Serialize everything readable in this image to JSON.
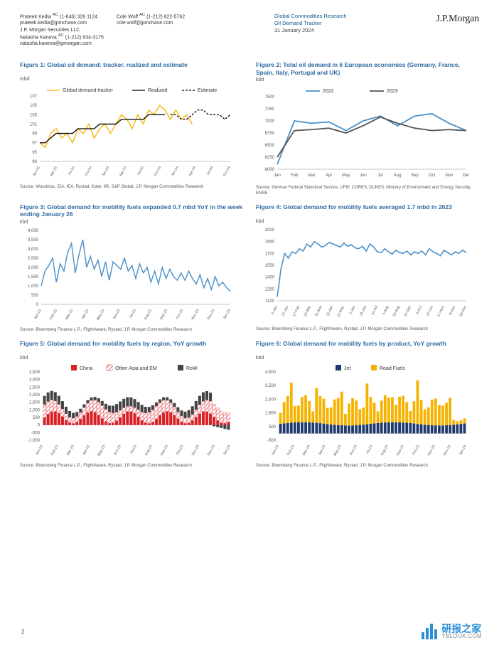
{
  "header": {
    "authors": [
      {
        "name": "Prateek Kedia",
        "sup": "AC",
        "phone": "(1-646) 326 1124",
        "email": "prateek.kedia@jpmchase.com"
      },
      {
        "name": "Natasha Kaneva",
        "sup": "AC",
        "phone": "(1-212) 834-3175",
        "email": "natasha.kaneva@jpmorgan.com"
      },
      {
        "name": "Cole Wolf",
        "sup": "AC",
        "phone": "(1-212) 622-5762",
        "email": "cole.wolf@jpmchase.com"
      }
    ],
    "firm": "J.P. Morgan Securities LLC",
    "dept": "Global Commodities Research",
    "sub": "Oil Demand Tracker",
    "date": "31 January 2024",
    "logo": "J.P.Morgan"
  },
  "page": "2",
  "watermark": {
    "cn": "研报之家",
    "en": "YBLOOK.COM"
  },
  "figures": {
    "f1": {
      "title": "Figure 1: Global oil demand: tracker, realized and estimate",
      "unit": "mbd",
      "type": "line",
      "legend": [
        "Global demand tracker",
        "Realized",
        "Estimate"
      ],
      "colors": [
        "#f5b300",
        "#000000",
        "#000000"
      ],
      "line_styles": [
        "solid",
        "solid",
        "dash"
      ],
      "line_width": 1.3,
      "ylim": [
        93,
        107
      ],
      "ytick_step": 2,
      "x_labels": [
        "Jan-22",
        "Apr-22",
        "Jul-22",
        "Oct-22",
        "Jan-23",
        "Apr-23",
        "Jul-23",
        "Oct-23",
        "Jan-24",
        "Apr-24",
        "Jul-24",
        "Oct-24"
      ],
      "background": "#ffffff",
      "grid_color": "#d0d0d0",
      "series": {
        "tracker": [
          97,
          96,
          99,
          100,
          98,
          99,
          97,
          100,
          99,
          101,
          98,
          100,
          101,
          99,
          101,
          103,
          102,
          100,
          103,
          101,
          104,
          103,
          105,
          104,
          102,
          104,
          102,
          103,
          101
        ],
        "realized": [
          97,
          97,
          98,
          99,
          99,
          99,
          99,
          100,
          100,
          100,
          100,
          101,
          101,
          101,
          101,
          102,
          102,
          102,
          102,
          102,
          103,
          103,
          103,
          103
        ],
        "estimate_x_offset": 24,
        "estimate": [
          103,
          103,
          102,
          102,
          103,
          104,
          104,
          103,
          103,
          103,
          102,
          103
        ]
      },
      "source": "Source: Woodmac, EIA, IEA, Rystad, Kpler, IIR, S&P Global, J.P. Morgan Commodities Research"
    },
    "f2": {
      "title": "Figure 2: Total oil demand in 6 European economies (Germany, France, Spain, Italy, Portugal and UK)",
      "unit": "kbd",
      "type": "line",
      "legend": [
        "2022",
        "2023"
      ],
      "colors": [
        "#4a8fc9",
        "#555555"
      ],
      "line_width": 1.8,
      "ylim": [
        6000,
        7500
      ],
      "ytick_step": 250,
      "x_labels": [
        "Jan",
        "Feb",
        "Mar",
        "Apr",
        "May",
        "Jun",
        "Jul",
        "Aug",
        "Sep",
        "Oct",
        "Nov",
        "Dec"
      ],
      "background": "#ffffff",
      "grid_color": "#d0d0d0",
      "series": {
        "y2022": [
          6100,
          7000,
          6950,
          6980,
          6800,
          7000,
          7100,
          6900,
          7100,
          7150,
          6950,
          6800
        ],
        "y2023": [
          6250,
          6800,
          6820,
          6850,
          6750,
          6900,
          7080,
          6950,
          6850,
          6800,
          6820,
          6800
        ]
      },
      "source": "Source: German Federal Statistical Service, UFIP, CORES, DUKES, Ministry of Environment and Energy Security, ENSE"
    },
    "f3": {
      "title": "Figure 3: Global demand for mobility fuels expanded 0.7 mbd YoY in the week ending January 26",
      "unit": "kbd",
      "type": "line",
      "colors": [
        "#4a8fc9"
      ],
      "line_width": 1.4,
      "ylim": [
        0,
        4000
      ],
      "ytick_step": 500,
      "x_labels": [
        "Jan-23",
        "Feb-23",
        "Mar-23",
        "Apr-23",
        "May-23",
        "Jun-23",
        "Jul-23",
        "Aug-23",
        "Sep-23",
        "Oct-23",
        "Nov-23",
        "Dec-23",
        "Jan-24"
      ],
      "background": "#ffffff",
      "grid_color": "#d0d0d0",
      "series": {
        "y": [
          1000,
          1800,
          2100,
          2500,
          1200,
          2200,
          1800,
          2800,
          3300,
          1700,
          2700,
          3500,
          2000,
          2600,
          1900,
          2400,
          1500,
          2300,
          1300,
          2300,
          2100,
          1900,
          2500,
          1800,
          2100,
          1400,
          2200,
          1700,
          2000,
          1200,
          1800,
          1100,
          2000,
          1400,
          1900,
          1500,
          1300,
          1700,
          1300,
          1800,
          1400,
          1100,
          1600,
          900,
          1400,
          800,
          1500,
          1000,
          1200,
          900,
          700
        ]
      },
      "source": "Source: Bloomberg Finance L.P., FlightAware, Rystad, J.P. Morgan Commodities Research"
    },
    "f4": {
      "title": "Figure 4: Global demand for mobility fuels averaged 1.7 mbd in 2023",
      "unit": "kbd",
      "type": "line",
      "colors": [
        "#4a8fc9"
      ],
      "line_width": 1.6,
      "ylim": [
        1100,
        2000
      ],
      "ytick_step": 150,
      "x_labels": [
        "6-Jan",
        "27-Jan",
        "17-Feb",
        "10-Mar",
        "31-Mar",
        "21-Apr",
        "12-May",
        "2-Jun",
        "23-Jun",
        "14-Jul",
        "4-Aug",
        "25-Aug",
        "15-Sep",
        "6-Oct",
        "27-Oct",
        "17-Nov",
        "8-Dec",
        "29-Dec"
      ],
      "background": "#ffffff",
      "grid_color": "#d0d0d0",
      "series": {
        "y": [
          1150,
          1500,
          1700,
          1640,
          1720,
          1700,
          1760,
          1730,
          1820,
          1780,
          1850,
          1820,
          1780,
          1800,
          1840,
          1820,
          1800,
          1780,
          1830,
          1790,
          1810,
          1770,
          1760,
          1790,
          1730,
          1820,
          1780,
          1720,
          1710,
          1760,
          1720,
          1690,
          1740,
          1710,
          1700,
          1730,
          1680,
          1720,
          1700,
          1730,
          1680,
          1760,
          1720,
          1700,
          1670,
          1740,
          1710,
          1680,
          1720,
          1700,
          1740,
          1710
        ]
      },
      "source": "Source: Bloomberg Finance L.P., FlightAware, Rystad, J.P. Morgan Commodities Research"
    },
    "f5": {
      "title": "Figure 5: Global demand for mobility fuels by region, YoY growth",
      "unit": "kbd",
      "type": "bar_stacked",
      "legend": [
        "China",
        "Other Asia and EM",
        "RoW"
      ],
      "colors": [
        "#d92027",
        "#ffffff",
        "#444444"
      ],
      "hatch": [
        false,
        true,
        false
      ],
      "hatch_color": "#d92027",
      "ylim": [
        -1000,
        3500
      ],
      "ytick_step": 500,
      "x_labels": [
        "Jan-23",
        "Feb-23",
        "Mar-23",
        "Apr-23",
        "May-23",
        "Jun-23",
        "Jul-23",
        "Aug-23",
        "Sep-23",
        "Oct-23",
        "Nov-23",
        "Dec-23",
        "Jan-24"
      ],
      "bar_width": 0.8,
      "background": "#ffffff",
      "grid_color": "#d0d0d0",
      "series": {
        "n": 52,
        "china_base": 500,
        "china_amp": 800,
        "other_base": 600,
        "other_amp": 500,
        "row_base": 400,
        "row_amp": 400
      },
      "source": "Source: Bloomberg Finance L.P., FlightAware, Rystad, J.P. Morgan Commodities Research"
    },
    "f6": {
      "title": "Figure 6: Global demand for mobility fuels by product, YoY growth",
      "unit": "kbd",
      "type": "bar_stacked",
      "legend": [
        "Jet",
        "Road Fuels"
      ],
      "colors": [
        "#1e3a6e",
        "#f5b300"
      ],
      "ylim": [
        -500,
        4500
      ],
      "ytick_step": 1000,
      "x_labels": [
        "Jan-23",
        "Feb-23",
        "Mar-23",
        "Apr-23",
        "May-23",
        "Jun-23",
        "Jul-23",
        "Aug-23",
        "Sep-23",
        "Oct-23",
        "Nov-23",
        "Dec-23",
        "Jan-24"
      ],
      "bar_width": 0.75,
      "background": "#ffffff",
      "grid_color": "#d0d0d0",
      "series": {
        "n": 52,
        "jet_base": 700,
        "jet_amp": 300,
        "road_base": 800,
        "road_amp": 1200
      },
      "source": "Source: Bloomberg Finance L.P., FlightAware, Rystad, J.P. Morgan Commodities Research"
    }
  }
}
